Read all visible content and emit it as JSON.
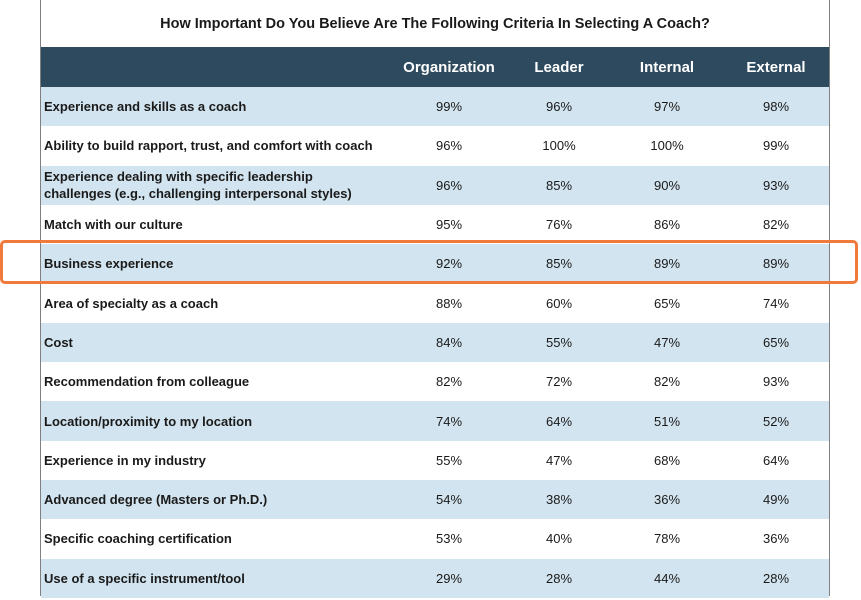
{
  "chart_data": {
    "type": "table",
    "title": "How Important Do You Believe Are The Following Criteria In Selecting A Coach?",
    "columns": [
      "Organization",
      "Leader",
      "Internal",
      "External"
    ],
    "highlighted_row": "Business experience",
    "rows": [
      {
        "label": "Experience and skills as a coach",
        "values": [
          "99%",
          "96%",
          "97%",
          "98%"
        ]
      },
      {
        "label": "Ability to build rapport, trust, and comfort with coach",
        "values": [
          "96%",
          "100%",
          "100%",
          "99%"
        ]
      },
      {
        "label": "Experience dealing with specific leadership challenges (e.g., challenging interpersonal styles)",
        "values": [
          "96%",
          "85%",
          "90%",
          "93%"
        ]
      },
      {
        "label": "Match with our culture",
        "values": [
          "95%",
          "76%",
          "86%",
          "82%"
        ]
      },
      {
        "label": "Business experience",
        "values": [
          "92%",
          "85%",
          "89%",
          "89%"
        ]
      },
      {
        "label": "Area of specialty as a coach",
        "values": [
          "88%",
          "60%",
          "65%",
          "74%"
        ]
      },
      {
        "label": "Cost",
        "values": [
          "84%",
          "55%",
          "47%",
          "65%"
        ]
      },
      {
        "label": "Recommendation from colleague",
        "values": [
          "82%",
          "72%",
          "82%",
          "93%"
        ]
      },
      {
        "label": "Location/proximity to my location",
        "values": [
          "74%",
          "64%",
          "51%",
          "52%"
        ]
      },
      {
        "label": "Experience in my industry",
        "values": [
          "55%",
          "47%",
          "68%",
          "64%"
        ]
      },
      {
        "label": "Advanced degree (Masters or Ph.D.)",
        "values": [
          "54%",
          "38%",
          "36%",
          "49%"
        ]
      },
      {
        "label": "Specific coaching certification",
        "values": [
          "53%",
          "40%",
          "78%",
          "36%"
        ]
      },
      {
        "label": "Use of a specific instrument/tool",
        "values": [
          "29%",
          "28%",
          "44%",
          "28%"
        ]
      }
    ]
  },
  "colors": {
    "header_bg": "#2e4a5e",
    "row_shade": "#d2e4ef",
    "highlight_border": "#ef7a3b"
  }
}
